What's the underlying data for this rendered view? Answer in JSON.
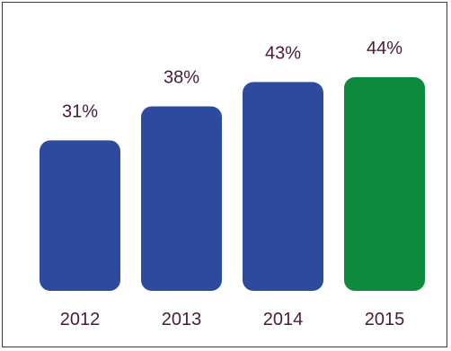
{
  "chart_data": {
    "type": "bar",
    "categories": [
      "2012",
      "2013",
      "2014",
      "2015"
    ],
    "values": [
      31,
      38,
      43,
      44
    ],
    "value_labels": [
      "31%",
      "38%",
      "43%",
      "44%"
    ],
    "bar_colors": [
      "#2e4a9e",
      "#2e4a9e",
      "#2e4a9e",
      "#0d8a3e"
    ],
    "label_color": "#4a1a3a",
    "title": "",
    "xlabel": "",
    "ylabel": "",
    "ylim": [
      0,
      50
    ],
    "grid": false,
    "legend": "none"
  }
}
